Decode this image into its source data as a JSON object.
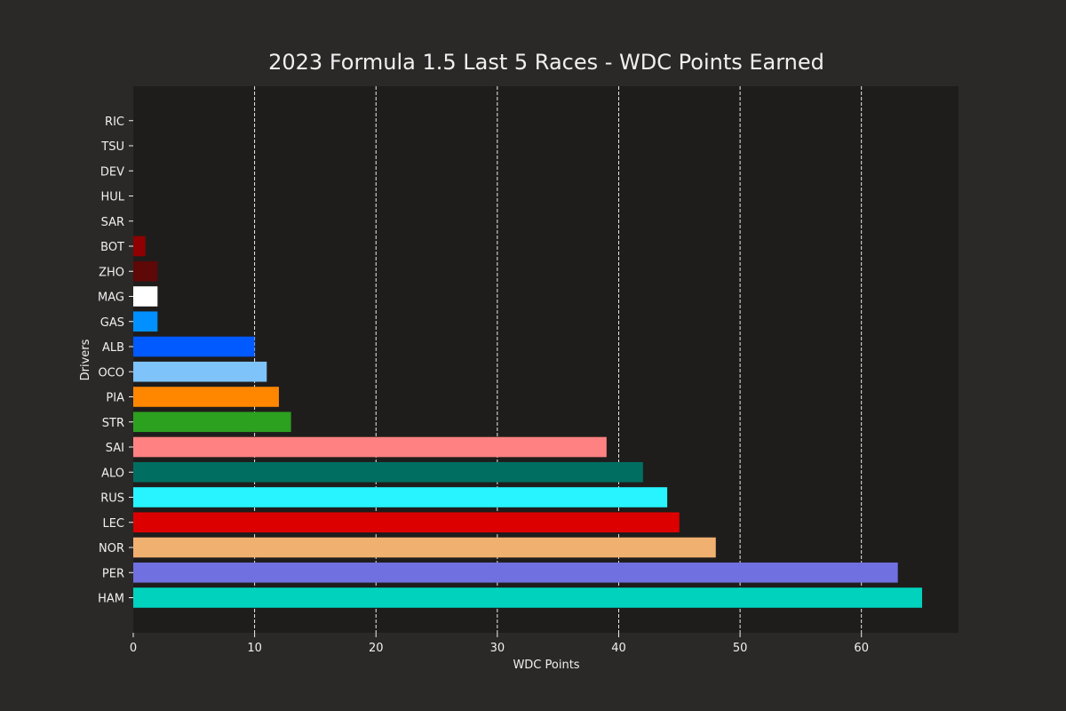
{
  "chart_data": {
    "type": "bar",
    "orientation": "horizontal",
    "title": "2023 Formula 1.5 Last 5 Races - WDC Points Earned",
    "xlabel": "WDC Points",
    "ylabel": "Drivers",
    "xlim": [
      0,
      68
    ],
    "xticks": [
      0,
      10,
      20,
      30,
      40,
      50,
      60
    ],
    "grid": "x-dashed",
    "categories": [
      "HAM",
      "PER",
      "NOR",
      "LEC",
      "RUS",
      "ALO",
      "SAI",
      "STR",
      "PIA",
      "OCO",
      "ALB",
      "GAS",
      "MAG",
      "ZHO",
      "BOT",
      "SAR",
      "HUL",
      "DEV",
      "TSU",
      "RIC"
    ],
    "values": [
      65,
      63,
      48,
      45,
      44,
      42,
      39,
      13,
      12,
      11,
      10,
      2,
      2,
      2,
      1,
      0,
      0,
      0,
      0,
      0
    ],
    "colors": [
      "#00d2be",
      "#7070e0",
      "#f0b070",
      "#dc0000",
      "#27f4ff",
      "#006f62",
      "#ff8181",
      "#2ca01f",
      "#ff8700",
      "#7ec3fa",
      "#005aff",
      "#0090ff",
      "#ffffff",
      "#5e0808",
      "#900000",
      "#ffffff",
      "#ffffff",
      "#ffffff",
      "#ffffff",
      "#ffffff"
    ]
  },
  "theme": {
    "background": "#2b2828",
    "plot_background": "#1f1d1c",
    "text": "#f0f0f0",
    "grid": "#ffffff"
  }
}
